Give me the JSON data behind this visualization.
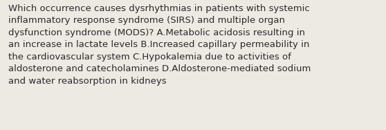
{
  "wrapped_text": "Which occurrence causes dysrhythmias in patients with systemic\ninflammatory response syndrome (SIRS) and multiple organ\ndysfunction syndrome (MODS)? A.Metabolic acidosis resulting in\nan increase in lactate levels B.Increased capillary permeability in\nthe cardiovascular system C.Hypokalemia due to activities of\naldosterone and catecholamines D.Aldosterone-mediated sodium\nand water reabsorption in kidneys",
  "background_color": "#ede9e3",
  "text_color": "#2a2a2a",
  "font_size": 9.5,
  "fig_width": 5.58,
  "fig_height": 1.88,
  "dpi": 100
}
